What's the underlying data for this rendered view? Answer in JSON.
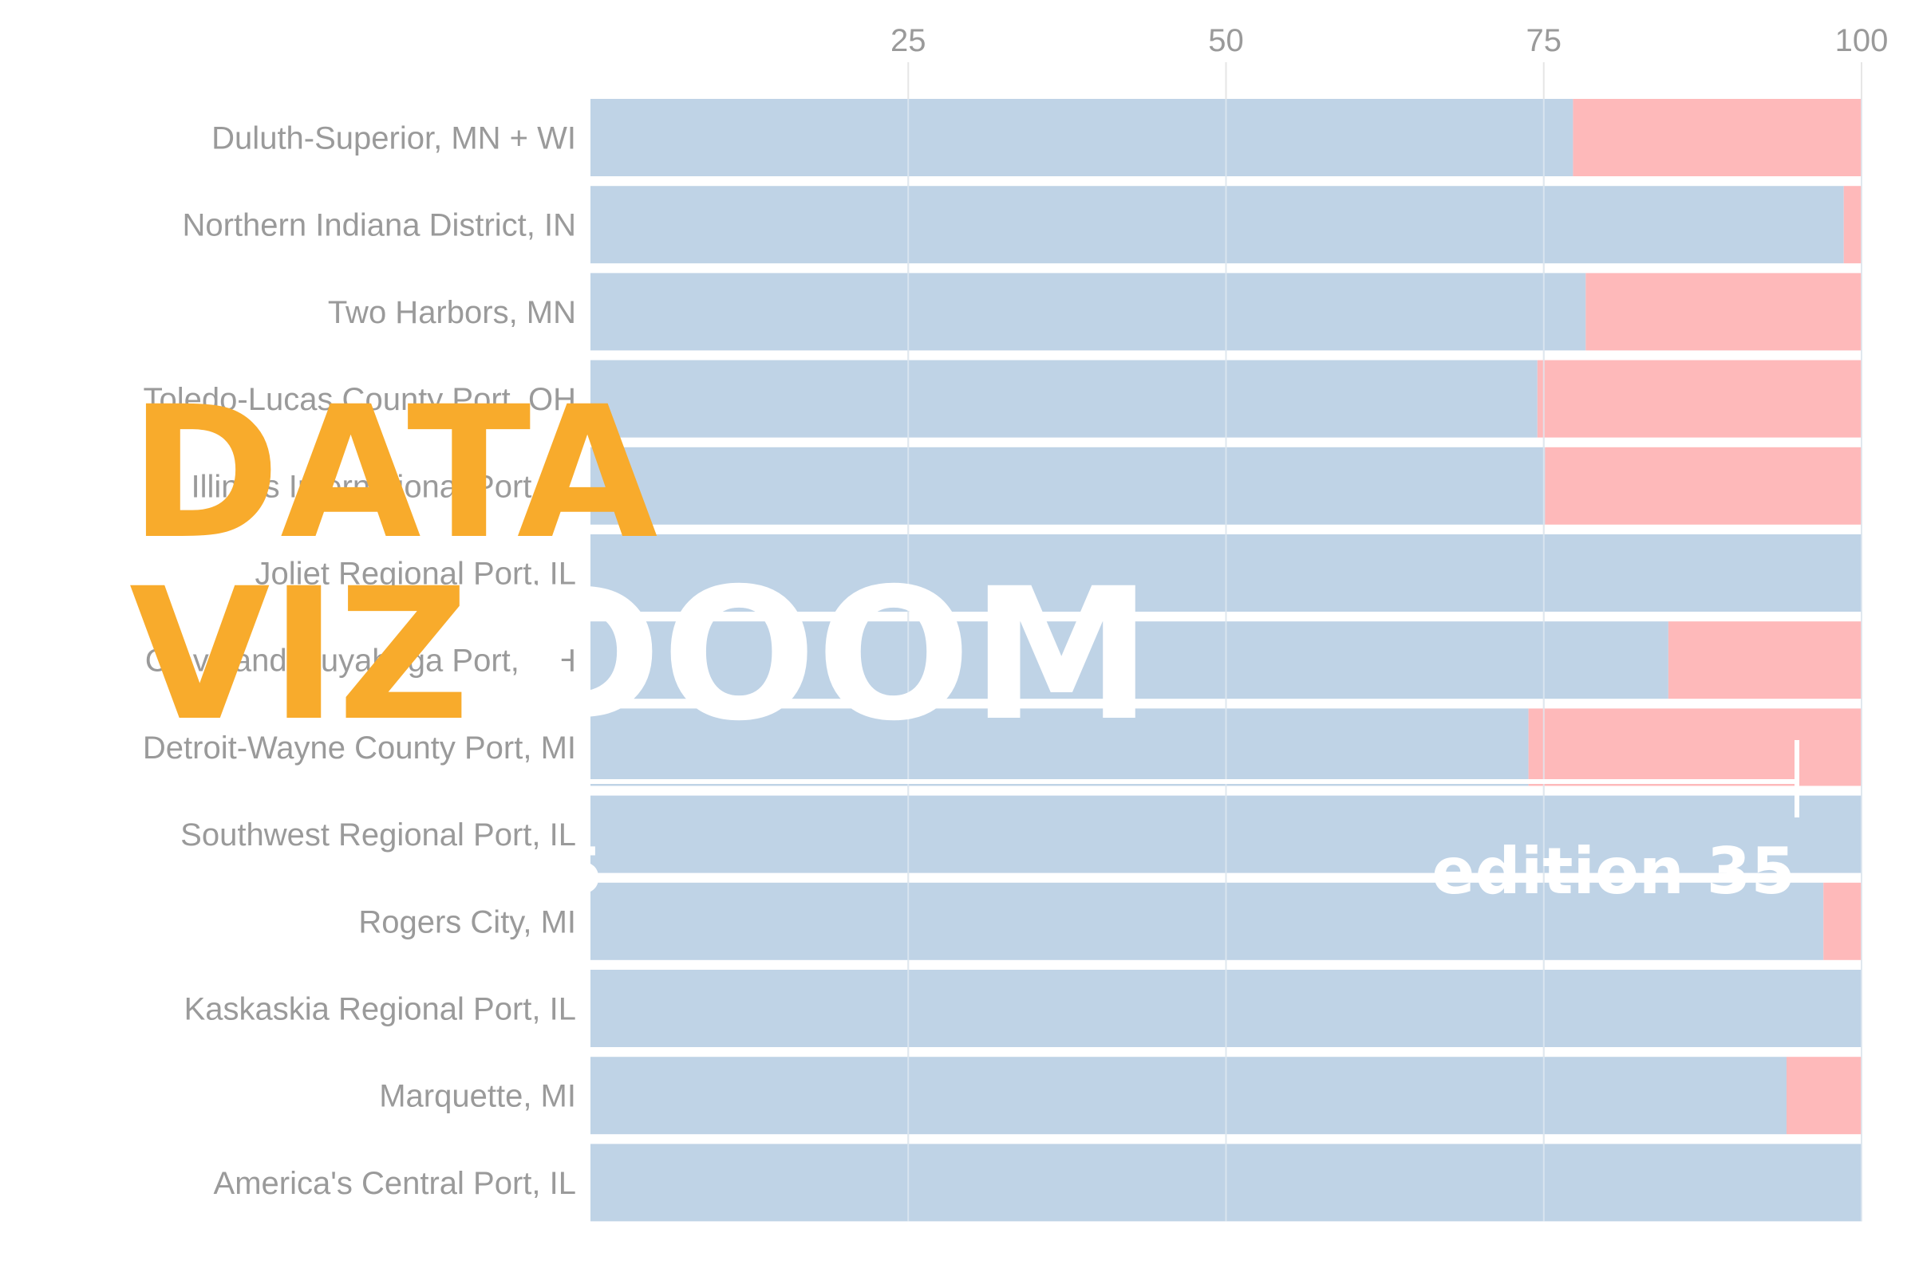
{
  "chart_data": {
    "type": "bar",
    "orientation": "horizontal",
    "stacked": true,
    "categories": [
      "Duluth-Superior, MN + WI",
      "Northern Indiana District, IN",
      "Two Harbors, MN",
      "Toledo-Lucas County Port, OH",
      "Illinois International Port, IL",
      "Joliet Regional Port, IL",
      "Cleveland-Cuyahoga Port, OH",
      "Detroit-Wayne County Port, MI",
      "Southwest Regional Port, IL",
      "Rogers City, MI",
      "Kaskaskia Regional Port, IL",
      "Marquette, MI",
      "America's Central Port, IL"
    ],
    "series": [
      {
        "color": "#bfd3e6",
        "values": [
          77.3,
          98.6,
          78.3,
          74.5,
          75.1,
          100,
          84.8,
          73.8,
          100,
          97.0,
          100,
          94.1,
          100
        ]
      },
      {
        "color": "#feb9ba",
        "values": [
          22.7,
          1.4,
          21.7,
          25.5,
          24.9,
          0,
          15.2,
          26.2,
          0,
          3.0,
          0,
          5.9,
          0
        ]
      }
    ],
    "xticks": [
      25,
      50,
      75,
      100
    ],
    "xlim": [
      0,
      100
    ],
    "xaxis_position": "top",
    "grid": true,
    "title": "",
    "xlabel": "",
    "ylabel": ""
  },
  "watermark": {
    "line1": "DATA",
    "line2_a": "VIZ",
    "line2_b": "DOOM",
    "edition": "edition 35",
    "partial_number": "5"
  }
}
